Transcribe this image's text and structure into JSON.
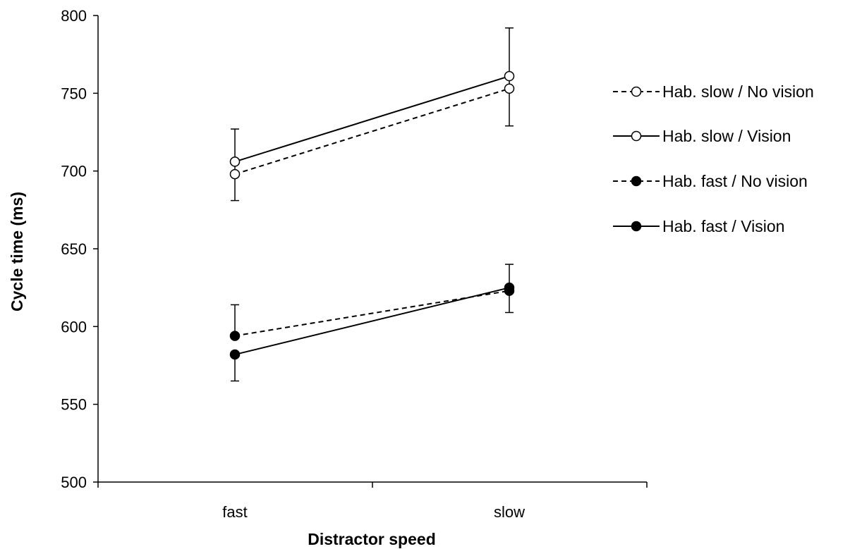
{
  "chart_data": {
    "type": "line",
    "title": "",
    "xlabel": "Distractor speed",
    "ylabel": "Cycle time (ms)",
    "categories": [
      "fast",
      "slow"
    ],
    "ylim": [
      500,
      800
    ],
    "yticks": [
      500,
      550,
      600,
      650,
      700,
      750,
      800
    ],
    "grid": false,
    "legend_position": "right",
    "series": [
      {
        "name": "Hab. slow / No vision",
        "values": [
          698,
          753
        ],
        "error_low": [
          681,
          729
        ],
        "error_high": [
          727,
          792
        ],
        "marker": "open-circle",
        "line": "dashed"
      },
      {
        "name": "Hab. slow / Vision",
        "values": [
          706,
          761
        ],
        "error_low": [
          706,
          761
        ],
        "error_high": [
          706,
          761
        ],
        "marker": "open-circle",
        "line": "solid"
      },
      {
        "name": "Hab. fast / No vision",
        "values": [
          594,
          623
        ],
        "error_low": [
          594,
          609
        ],
        "error_high": [
          614,
          623
        ],
        "marker": "filled-circle",
        "line": "dashed"
      },
      {
        "name": "Hab. fast / Vision",
        "values": [
          582,
          625
        ],
        "error_low": [
          565,
          625
        ],
        "error_high": [
          582,
          640
        ],
        "marker": "filled-circle",
        "line": "solid"
      }
    ]
  }
}
